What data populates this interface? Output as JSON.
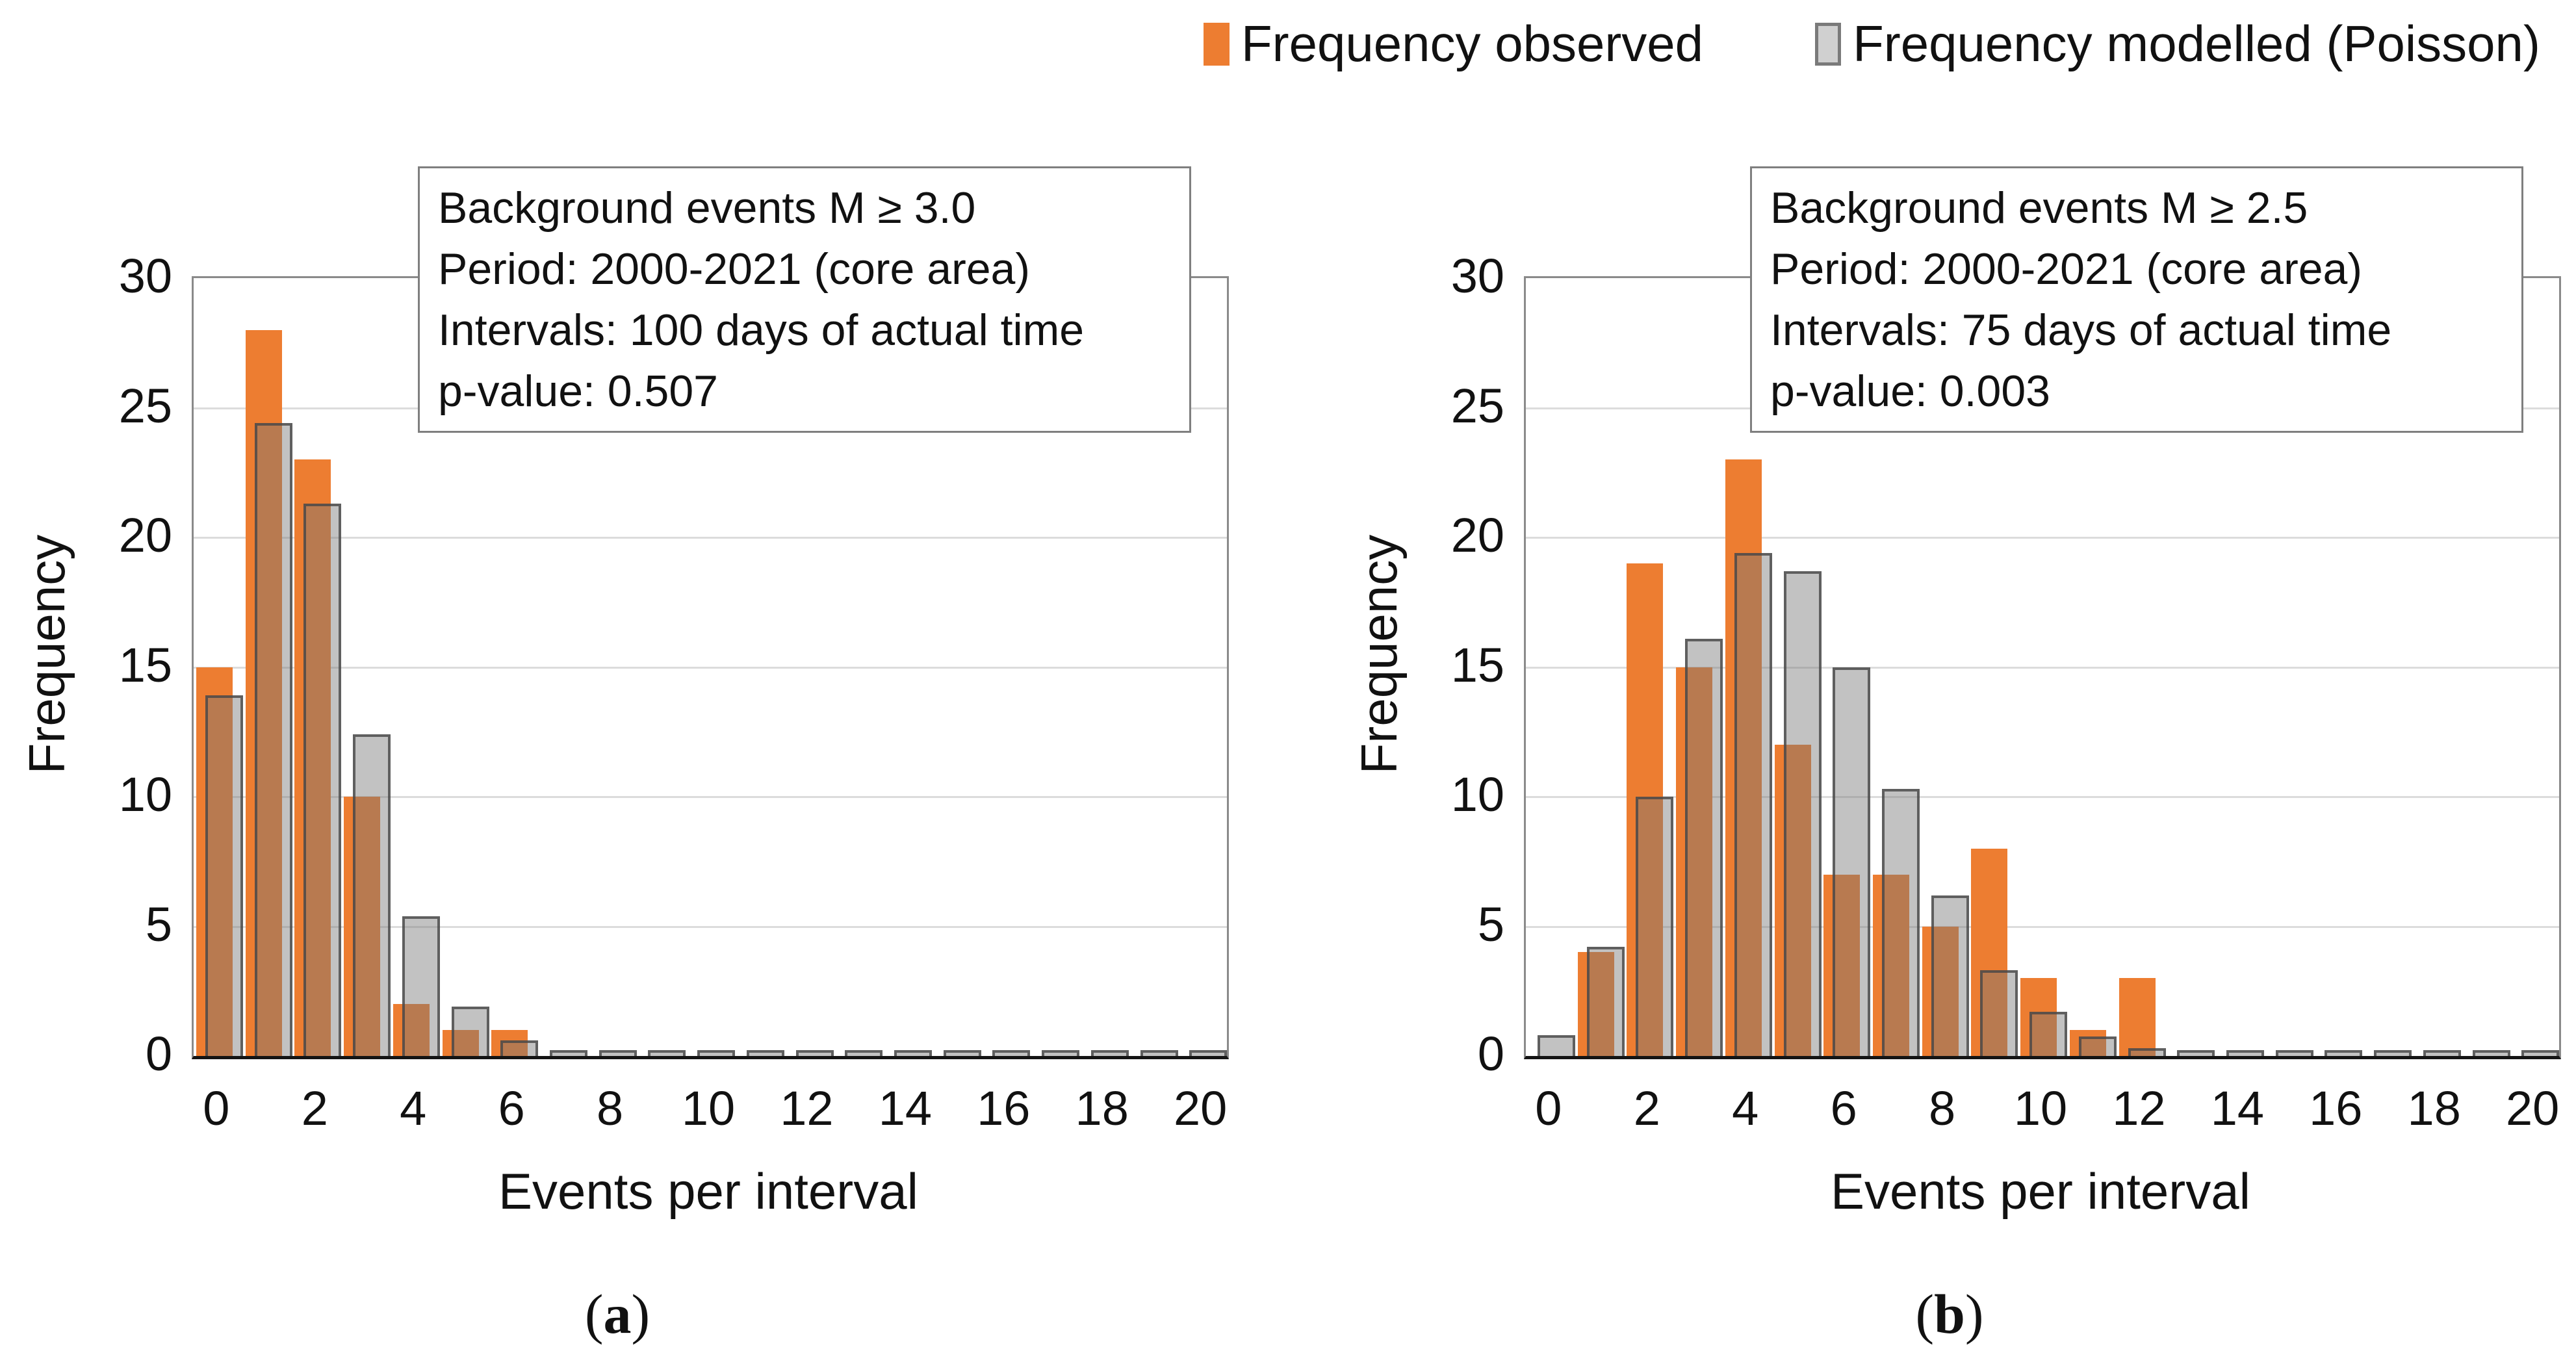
{
  "legend": {
    "observed": "Frequency observed",
    "modelled": "Frequency modelled (Poisson)"
  },
  "colors": {
    "observed": "#ED7D31",
    "modelled_fill_rgba": "rgba(120,120,120,0.45)",
    "modelled_border_rgba": "rgba(70,70,70,0.8)",
    "gridline": "#DCDCDC",
    "frame": "#8A8A8A",
    "axis": "#141414"
  },
  "punct": {
    "open": "(",
    "close": ")"
  },
  "chart_data": [
    {
      "type": "bar",
      "panel_label": "a",
      "xlabel": "Events per interval",
      "ylabel": "Frequency",
      "categories": [
        0,
        1,
        2,
        3,
        4,
        5,
        6,
        7,
        8,
        9,
        10,
        11,
        12,
        13,
        14,
        15,
        16,
        17,
        18,
        19,
        20
      ],
      "xticks": [
        0,
        2,
        4,
        6,
        8,
        10,
        12,
        14,
        16,
        18,
        20
      ],
      "yticks": [
        0,
        5,
        10,
        15,
        20,
        25,
        30
      ],
      "ylim": [
        0,
        30
      ],
      "grid": true,
      "legend_position": "top",
      "series": [
        {
          "name": "Frequency observed",
          "values": [
            15,
            28,
            23,
            10,
            2,
            1,
            1,
            0,
            0,
            0,
            0,
            0,
            0,
            0,
            0,
            0,
            0,
            0,
            0,
            0,
            0
          ]
        },
        {
          "name": "Frequency modelled (Poisson)",
          "values": [
            13.9,
            24.4,
            21.3,
            12.4,
            5.4,
            1.9,
            0.6,
            0.2,
            0.12,
            0.1,
            0.1,
            0.1,
            0.1,
            0.04,
            0.04,
            0.04,
            0.04,
            0.04,
            0.04,
            0.04,
            0.04
          ]
        }
      ],
      "annotation": [
        "Background events M ≥ 3.0",
        "Period: 2000-2021 (core area)",
        "Intervals: 100 days of actual time",
        "p-value: 0.507"
      ]
    },
    {
      "type": "bar",
      "panel_label": "b",
      "xlabel": "Events per interval",
      "ylabel": "Frequency",
      "categories": [
        0,
        1,
        2,
        3,
        4,
        5,
        6,
        7,
        8,
        9,
        10,
        11,
        12,
        13,
        14,
        15,
        16,
        17,
        18,
        19,
        20
      ],
      "xticks": [
        0,
        2,
        4,
        6,
        8,
        10,
        12,
        14,
        16,
        18,
        20
      ],
      "yticks": [
        0,
        5,
        10,
        15,
        20,
        25,
        30
      ],
      "ylim": [
        0,
        30
      ],
      "grid": true,
      "legend_position": "top",
      "series": [
        {
          "name": "Frequency observed",
          "values": [
            0,
            4,
            19,
            15,
            23,
            12,
            7,
            7,
            5,
            8,
            3,
            1,
            3,
            0,
            0,
            0,
            0,
            0,
            0,
            0,
            0
          ]
        },
        {
          "name": "Frequency modelled (Poisson)",
          "values": [
            0.8,
            4.2,
            10,
            16.1,
            19.4,
            18.7,
            15,
            10.3,
            6.2,
            3.3,
            1.7,
            0.75,
            0.3,
            0.1,
            0.04,
            0.04,
            0.04,
            0.04,
            0.04,
            0.04,
            0.04
          ]
        }
      ],
      "annotation": [
        "Background events M ≥ 2.5",
        "Period: 2000-2021 (core area)",
        "Intervals: 75 days of actual time",
        "p-value: 0.003"
      ]
    }
  ]
}
